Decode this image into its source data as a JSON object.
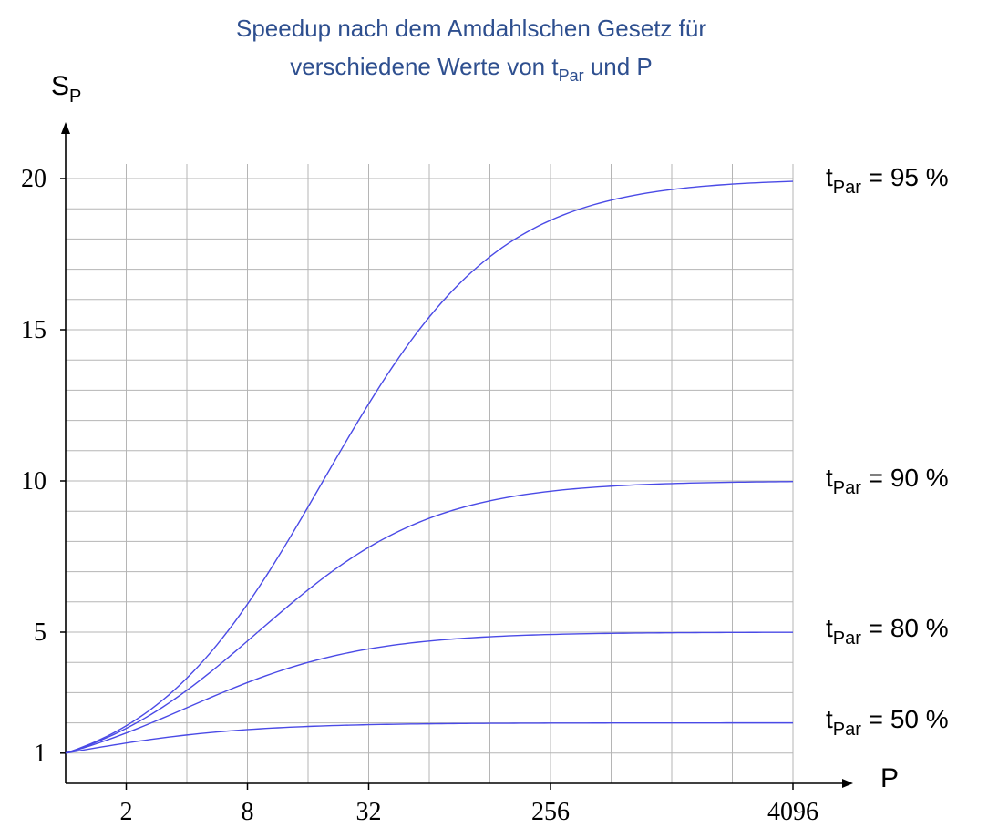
{
  "chart_data": {
    "type": "line",
    "title_line1": "Speedup nach dem Amdahlschen Gesetz für",
    "title_line2_parts": [
      "verschiedene Werte von t",
      "Par",
      " und P"
    ],
    "ylabel": {
      "main": "S",
      "sub": "P"
    },
    "xlabel": "P",
    "x_scale": "log2",
    "x": [
      1,
      2,
      4,
      8,
      16,
      32,
      64,
      128,
      256,
      512,
      1024,
      2048,
      4096
    ],
    "x_ticks": [
      2,
      8,
      32,
      256,
      4096
    ],
    "x_tick_labels": [
      "2",
      "8",
      "32",
      "256",
      "4096"
    ],
    "y_ticks": [
      1,
      5,
      10,
      15,
      20
    ],
    "y_tick_labels": [
      "1",
      "5",
      "10",
      "15",
      "20"
    ],
    "ylim": [
      0,
      21
    ],
    "grid": true,
    "series": [
      {
        "name": "t_Par = 50 %",
        "label_parts": [
          "t",
          "Par",
          " = 50 %"
        ],
        "parallel_fraction": 0.5,
        "values": [
          1,
          1.33,
          1.6,
          1.78,
          1.88,
          1.94,
          1.97,
          1.98,
          1.99,
          2.0,
          2.0,
          2.0,
          2.0
        ]
      },
      {
        "name": "t_Par = 80 %",
        "label_parts": [
          "t",
          "Par",
          " = 80 %"
        ],
        "parallel_fraction": 0.8,
        "values": [
          1,
          1.67,
          2.5,
          3.33,
          4.0,
          4.44,
          4.71,
          4.85,
          4.92,
          4.96,
          4.98,
          4.99,
          5.0
        ]
      },
      {
        "name": "t_Par = 90 %",
        "label_parts": [
          "t",
          "Par",
          " = 90 %"
        ],
        "parallel_fraction": 0.9,
        "values": [
          1,
          1.82,
          3.08,
          4.71,
          6.4,
          7.8,
          8.77,
          9.34,
          9.66,
          9.83,
          9.91,
          9.96,
          9.98
        ]
      },
      {
        "name": "t_Par = 95 %",
        "label_parts": [
          "t",
          "Par",
          " = 95 %"
        ],
        "parallel_fraction": 0.95,
        "values": [
          1,
          1.9,
          3.48,
          5.93,
          9.14,
          12.55,
          15.42,
          17.41,
          18.62,
          19.28,
          19.64,
          19.82,
          19.91
        ]
      }
    ],
    "line_color": "#4a4ae6"
  }
}
